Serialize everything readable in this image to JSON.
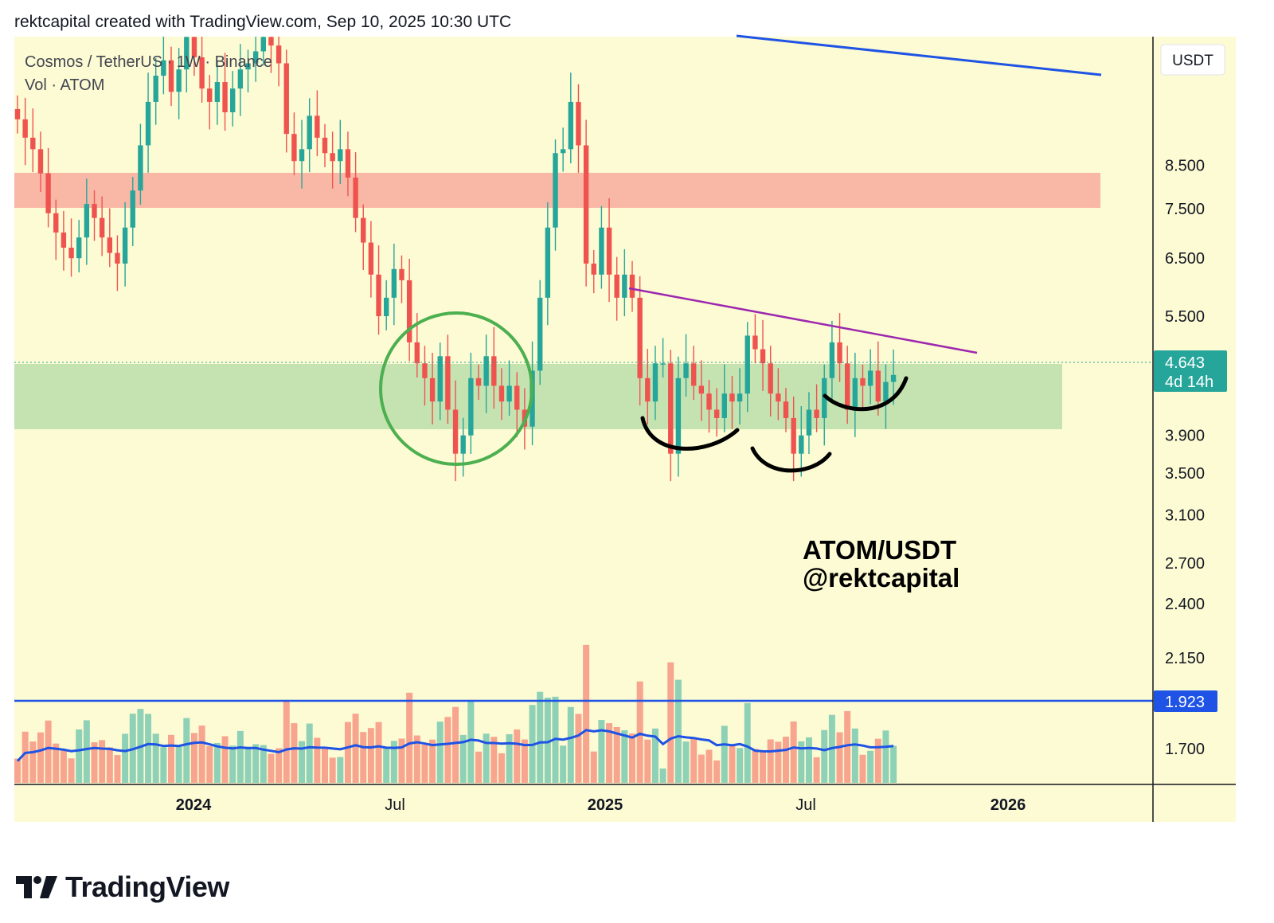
{
  "header": {
    "text": "rektcapital created with TradingView.com, Sep 10, 2025 10:30 UTC"
  },
  "legend": {
    "line1": "Cosmos / TetherUS · 1W · Binance",
    "line2": "Vol · ATOM"
  },
  "currency": "USDT",
  "last_price": {
    "value": "4.643",
    "countdown": "4d 14h"
  },
  "volume_level": "1.923",
  "annotation": {
    "line1": "ATOM/USDT",
    "line2": "@rektcapital"
  },
  "brand": "TradingView",
  "colors": {
    "background": "#fdfbd3",
    "up": "#26a69a",
    "down": "#ef5350",
    "up_volume": "#8ed1b7",
    "down_volume": "#f7a58f",
    "resistance_zone": "#f9b8a6",
    "support_zone": "#c5e3b1",
    "trendline_purple": "#9c27b0",
    "trendline_blue": "#1e53e5",
    "circle": "#4caf50",
    "price_tag": "#26a69a",
    "volume_tag": "#1e53e5"
  },
  "chart_data": {
    "type": "candlestick",
    "scale": "log",
    "interval": "1W",
    "y_ticks": [
      "8.500",
      "7.500",
      "6.500",
      "5.500",
      "3.900",
      "3.500",
      "3.100",
      "2.700",
      "2.400",
      "2.150",
      "1.700"
    ],
    "x_ticks": [
      "2024",
      "Jul",
      "2025",
      "Jul",
      "2026"
    ],
    "closes": [
      9.7,
      9.2,
      8.9,
      8.3,
      7.4,
      7.0,
      6.7,
      6.5,
      6.9,
      7.6,
      7.3,
      6.9,
      6.6,
      6.4,
      7.1,
      7.9,
      9.0,
      10.2,
      11.0,
      11.5,
      10.5,
      11.2,
      12.3,
      11.6,
      10.6,
      10.2,
      10.8,
      9.9,
      10.6,
      11.2,
      11.4,
      11.8,
      12.3,
      12.0,
      11.4,
      9.3,
      8.6,
      8.9,
      9.8,
      9.2,
      8.8,
      8.6,
      8.9,
      8.2,
      7.3,
      6.8,
      6.2,
      5.5,
      5.8,
      6.3,
      6.1,
      5.1,
      4.8,
      4.6,
      4.3,
      4.9,
      4.2,
      3.7,
      3.9,
      4.6,
      4.5,
      4.9,
      4.5,
      4.3,
      4.5,
      4.2,
      4.0,
      4.7,
      5.8,
      7.1,
      8.8,
      8.9,
      10.2,
      9.0,
      6.4,
      6.2,
      7.1,
      6.2,
      5.8,
      6.2,
      5.8,
      4.6,
      4.3,
      4.8,
      4.8,
      3.7,
      4.6,
      4.8,
      4.5,
      4.4,
      4.2,
      4.1,
      4.4,
      4.3,
      4.4,
      5.2,
      5.0,
      4.8,
      4.4,
      4.3,
      4.1,
      3.7,
      3.9,
      4.2,
      4.1,
      4.6,
      5.1,
      4.8,
      4.2,
      4.6,
      4.5,
      4.7,
      4.3,
      4.55,
      4.643
    ],
    "volume_sma_level": 1.923
  }
}
